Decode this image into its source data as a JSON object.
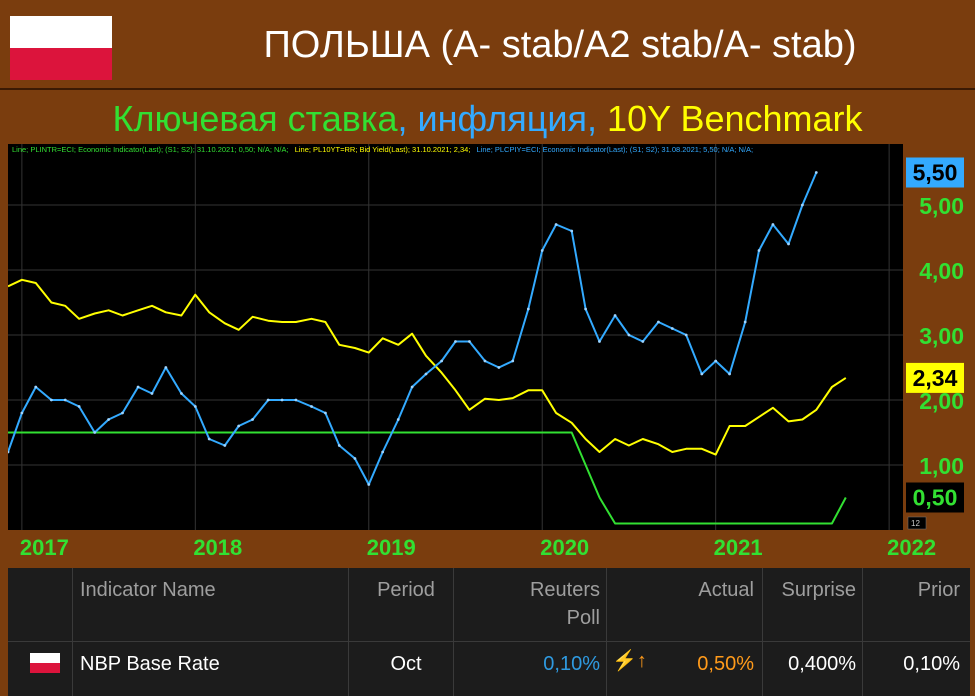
{
  "header": {
    "title": "ПОЛЬША (A- stab/A2 stab/A- stab)",
    "subtitle": {
      "key_rate": "Ключевая ставка",
      "sep1": ", ",
      "inflation": "инфляция",
      "sep2": ", ",
      "benchmark": "10Y Benchmark"
    }
  },
  "colors": {
    "background": "#7a3d0e",
    "chart_bg": "#000000",
    "key_rate": "#32e032",
    "inflation": "#33aaff",
    "benchmark": "#ffff00",
    "actual": "#ff9a1a"
  },
  "chart_data": {
    "type": "line",
    "legend_text": {
      "key_rate": "Line; PLINTR=ECI; Economic Indicator(Last); (S1; S2); 31.10.2021; 0,50; N/A; N/A;",
      "benchmark": "Line; PL10YT=RR; Bid Yield(Last); 31.10.2021; 2,34;",
      "inflation": "Line; PLCPIY=ECI; Economic Indicator(Last); (S1; S2); 31.08.2021; 5,50; N/A; N/A;"
    },
    "x_ticks": [
      "2017",
      "2018",
      "2019",
      "2020",
      "2021",
      "2022"
    ],
    "y_ticks": [
      "1,00",
      "2,00",
      "3,00",
      "4,00",
      "5,00"
    ],
    "ylim": [
      0,
      6
    ],
    "last_labels": {
      "inflation": "5,50",
      "benchmark": "2,34",
      "key_rate": "0,50"
    },
    "axis_note": "12",
    "series": [
      {
        "key": "inflation",
        "points": [
          [
            2016.92,
            1.2
          ],
          [
            2017.0,
            1.8
          ],
          [
            2017.08,
            2.2
          ],
          [
            2017.17,
            2.0
          ],
          [
            2017.25,
            2.0
          ],
          [
            2017.33,
            1.9
          ],
          [
            2017.42,
            1.5
          ],
          [
            2017.5,
            1.7
          ],
          [
            2017.58,
            1.8
          ],
          [
            2017.67,
            2.2
          ],
          [
            2017.75,
            2.1
          ],
          [
            2017.83,
            2.5
          ],
          [
            2017.92,
            2.1
          ],
          [
            2018.0,
            1.9
          ],
          [
            2018.08,
            1.4
          ],
          [
            2018.17,
            1.3
          ],
          [
            2018.25,
            1.6
          ],
          [
            2018.33,
            1.7
          ],
          [
            2018.42,
            2.0
          ],
          [
            2018.5,
            2.0
          ],
          [
            2018.58,
            2.0
          ],
          [
            2018.67,
            1.9
          ],
          [
            2018.75,
            1.8
          ],
          [
            2018.83,
            1.3
          ],
          [
            2018.92,
            1.1
          ],
          [
            2019.0,
            0.7
          ],
          [
            2019.08,
            1.2
          ],
          [
            2019.17,
            1.7
          ],
          [
            2019.25,
            2.2
          ],
          [
            2019.33,
            2.4
          ],
          [
            2019.42,
            2.6
          ],
          [
            2019.5,
            2.9
          ],
          [
            2019.58,
            2.9
          ],
          [
            2019.67,
            2.6
          ],
          [
            2019.75,
            2.5
          ],
          [
            2019.83,
            2.6
          ],
          [
            2019.92,
            3.4
          ],
          [
            2020.0,
            4.3
          ],
          [
            2020.08,
            4.7
          ],
          [
            2020.17,
            4.6
          ],
          [
            2020.25,
            3.4
          ],
          [
            2020.33,
            2.9
          ],
          [
            2020.42,
            3.3
          ],
          [
            2020.5,
            3.0
          ],
          [
            2020.58,
            2.9
          ],
          [
            2020.67,
            3.2
          ],
          [
            2020.75,
            3.1
          ],
          [
            2020.83,
            3.0
          ],
          [
            2020.92,
            2.4
          ],
          [
            2021.0,
            2.6
          ],
          [
            2021.08,
            2.4
          ],
          [
            2021.17,
            3.2
          ],
          [
            2021.25,
            4.3
          ],
          [
            2021.33,
            4.7
          ],
          [
            2021.42,
            4.4
          ],
          [
            2021.5,
            5.0
          ],
          [
            2021.58,
            5.5
          ]
        ]
      },
      {
        "key": "benchmark",
        "points": [
          [
            2016.92,
            3.75
          ],
          [
            2017.0,
            3.85
          ],
          [
            2017.08,
            3.8
          ],
          [
            2017.17,
            3.5
          ],
          [
            2017.25,
            3.45
          ],
          [
            2017.33,
            3.25
          ],
          [
            2017.42,
            3.33
          ],
          [
            2017.5,
            3.38
          ],
          [
            2017.58,
            3.3
          ],
          [
            2017.67,
            3.38
          ],
          [
            2017.75,
            3.45
          ],
          [
            2017.83,
            3.35
          ],
          [
            2017.92,
            3.3
          ],
          [
            2018.0,
            3.62
          ],
          [
            2018.08,
            3.35
          ],
          [
            2018.17,
            3.18
          ],
          [
            2018.25,
            3.08
          ],
          [
            2018.33,
            3.28
          ],
          [
            2018.42,
            3.22
          ],
          [
            2018.5,
            3.2
          ],
          [
            2018.58,
            3.2
          ],
          [
            2018.67,
            3.25
          ],
          [
            2018.75,
            3.2
          ],
          [
            2018.83,
            2.85
          ],
          [
            2018.92,
            2.8
          ],
          [
            2019.0,
            2.73
          ],
          [
            2019.08,
            2.95
          ],
          [
            2019.17,
            2.85
          ],
          [
            2019.25,
            3.02
          ],
          [
            2019.33,
            2.68
          ],
          [
            2019.42,
            2.42
          ],
          [
            2019.5,
            2.15
          ],
          [
            2019.58,
            1.85
          ],
          [
            2019.67,
            2.02
          ],
          [
            2019.75,
            2.0
          ],
          [
            2019.83,
            2.03
          ],
          [
            2019.92,
            2.15
          ],
          [
            2020.0,
            2.15
          ],
          [
            2020.08,
            1.8
          ],
          [
            2020.17,
            1.65
          ],
          [
            2020.25,
            1.4
          ],
          [
            2020.33,
            1.2
          ],
          [
            2020.42,
            1.4
          ],
          [
            2020.5,
            1.3
          ],
          [
            2020.58,
            1.4
          ],
          [
            2020.67,
            1.32
          ],
          [
            2020.75,
            1.2
          ],
          [
            2020.83,
            1.25
          ],
          [
            2020.92,
            1.25
          ],
          [
            2021.0,
            1.16
          ],
          [
            2021.08,
            1.6
          ],
          [
            2021.17,
            1.6
          ],
          [
            2021.25,
            1.74
          ],
          [
            2021.33,
            1.88
          ],
          [
            2021.42,
            1.67
          ],
          [
            2021.5,
            1.7
          ],
          [
            2021.58,
            1.85
          ],
          [
            2021.67,
            2.2
          ],
          [
            2021.75,
            2.34
          ]
        ]
      },
      {
        "key": "key_rate",
        "points": [
          [
            2016.92,
            1.5
          ],
          [
            2020.17,
            1.5
          ],
          [
            2020.25,
            1.0
          ],
          [
            2020.33,
            0.5
          ],
          [
            2020.42,
            0.1
          ],
          [
            2021.67,
            0.1
          ],
          [
            2021.75,
            0.5
          ]
        ]
      }
    ]
  },
  "table": {
    "headers": {
      "indicator": "Indicator Name",
      "period": "Period",
      "poll_line1": "Reuters",
      "poll_line2": "Poll",
      "actual": "Actual",
      "surprise": "Surprise",
      "prior": "Prior"
    },
    "row": {
      "indicator": "NBP Base Rate",
      "period": "Oct",
      "poll": "0,10%",
      "flag_symbol": "⚡↑",
      "actual": "0,50%",
      "surprise": "0,400%",
      "prior": "0,10%"
    }
  }
}
